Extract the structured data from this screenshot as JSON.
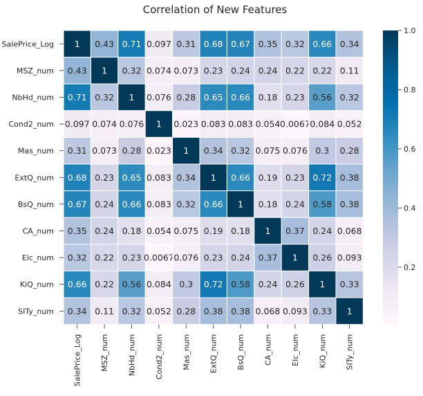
{
  "chart_data": {
    "type": "heatmap",
    "title": "Correlation of New Features",
    "xlabel": "",
    "ylabel": "",
    "labels": [
      "SalePrice_Log",
      "MSZ_num",
      "NbHd_num",
      "Cond2_num",
      "Mas_num",
      "ExtQ_num",
      "BsQ_num",
      "CA_num",
      "Elc_num",
      "KiQ_num",
      "SITy_num"
    ],
    "values": [
      [
        "1",
        "0.43",
        "0.71",
        "0.097",
        "0.31",
        "0.68",
        "0.67",
        "0.35",
        "0.32",
        "0.66",
        "0.34"
      ],
      [
        "0.43",
        "1",
        "0.32",
        "0.074",
        "0.073",
        "0.23",
        "0.24",
        "0.24",
        "0.22",
        "0.22",
        "0.11"
      ],
      [
        "0.71",
        "0.32",
        "1",
        "0.076",
        "0.28",
        "0.65",
        "0.66",
        "0.18",
        "0.23",
        "0.56",
        "0.32"
      ],
      [
        "0.097",
        "0.074",
        "0.076",
        "1",
        "0.023",
        "0.083",
        "0.083",
        "0.054",
        "0.0067",
        "0.084",
        "0.052"
      ],
      [
        "0.31",
        "0.073",
        "0.28",
        "0.023",
        "1",
        "0.34",
        "0.32",
        "0.075",
        "0.076",
        "0.3",
        "0.28"
      ],
      [
        "0.68",
        "0.23",
        "0.65",
        "0.083",
        "0.34",
        "1",
        "0.66",
        "0.19",
        "0.23",
        "0.72",
        "0.38"
      ],
      [
        "0.67",
        "0.24",
        "0.66",
        "0.083",
        "0.32",
        "0.66",
        "1",
        "0.18",
        "0.24",
        "0.58",
        "0.38"
      ],
      [
        "0.35",
        "0.24",
        "0.18",
        "0.054",
        "0.075",
        "0.19",
        "0.18",
        "1",
        "0.37",
        "0.24",
        "0.068"
      ],
      [
        "0.32",
        "0.22",
        "0.23",
        "0.0067",
        "0.076",
        "0.23",
        "0.24",
        "0.37",
        "1",
        "0.26",
        "0.093"
      ],
      [
        "0.66",
        "0.22",
        "0.56",
        "0.084",
        "0.3",
        "0.72",
        "0.58",
        "0.24",
        "0.26",
        "1",
        "0.33"
      ],
      [
        "0.34",
        "0.11",
        "0.32",
        "0.052",
        "0.28",
        "0.38",
        "0.38",
        "0.068",
        "0.093",
        "0.33",
        "1"
      ]
    ],
    "vmin": 0.0067,
    "vmax": 1,
    "colormap": "PuBu",
    "colormap_stops": [
      "#fff7fb",
      "#ece7f2",
      "#d0d1e6",
      "#a6bddb",
      "#74a9cf",
      "#3690c0",
      "#0570b0",
      "#045a8d",
      "#023858"
    ],
    "cell_text_dark": "#262626",
    "cell_text_light": "#ffffff",
    "colorbar_ticks": [
      "0.2",
      "0.4",
      "0.6",
      "0.8",
      "1.0"
    ],
    "grid": true,
    "legend": "colorbar-right"
  }
}
